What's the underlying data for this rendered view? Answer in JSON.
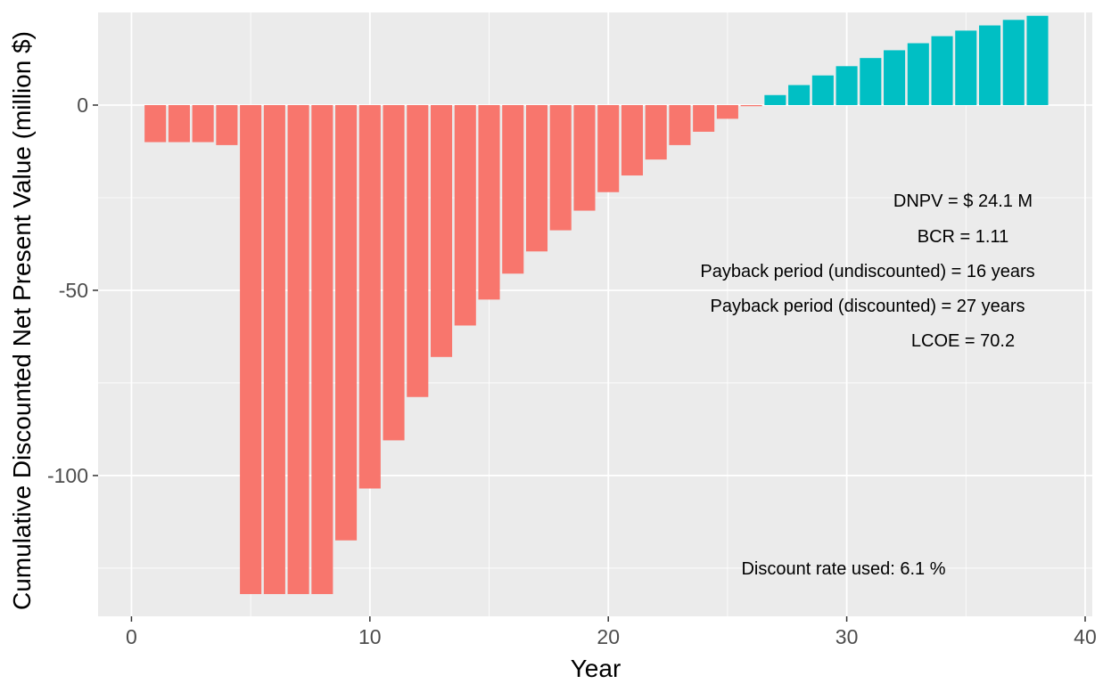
{
  "chart_data": {
    "type": "bar",
    "title": "",
    "xlabel": "Year",
    "ylabel": "Cumulative Discounted Net Present Value (million $)",
    "xlim": [
      -1.4,
      40.3
    ],
    "ylim": [
      -138,
      25
    ],
    "x_ticks": [
      0,
      10,
      20,
      30,
      40
    ],
    "y_ticks": [
      0,
      -50,
      -100
    ],
    "grid": true,
    "legend": "none",
    "colors": {
      "negative": "#F8766D",
      "positive": "#00BFC4",
      "panel": "#EBEBEB",
      "grid": "#FFFFFF"
    },
    "x": [
      1,
      2,
      3,
      4,
      5,
      6,
      7,
      8,
      9,
      10,
      11,
      12,
      13,
      14,
      15,
      16,
      17,
      18,
      19,
      20,
      21,
      22,
      23,
      24,
      25,
      26,
      27,
      28,
      29,
      30,
      31,
      32,
      33,
      34,
      35,
      36,
      37,
      38
    ],
    "values": [
      -10,
      -10,
      -10,
      -10.8,
      -132,
      -132,
      -132,
      -132,
      -117.5,
      -103.5,
      -90.5,
      -78.8,
      -68,
      -59.5,
      -52.5,
      -45.5,
      -39.5,
      -33.8,
      -28.5,
      -23.5,
      -19,
      -14.7,
      -10.8,
      -7.2,
      -3.7,
      -0.3,
      2.7,
      5.4,
      8,
      10.5,
      12.7,
      14.8,
      16.7,
      18.6,
      20.1,
      21.5,
      23,
      24.1
    ]
  },
  "annotations": [
    {
      "id": "dnpv",
      "text": "DNPV = $ 24.1 M"
    },
    {
      "id": "bcr",
      "text": "BCR =  1.11"
    },
    {
      "id": "payback-undisc",
      "text": "Payback period (undiscounted) = 16 years"
    },
    {
      "id": "payback-disc",
      "text": "Payback period (discounted) = 27 years"
    },
    {
      "id": "lcoe",
      "text": "LCOE =  70.2"
    },
    {
      "id": "discount-rate",
      "text": "Discount rate used:  6.1 %"
    }
  ]
}
